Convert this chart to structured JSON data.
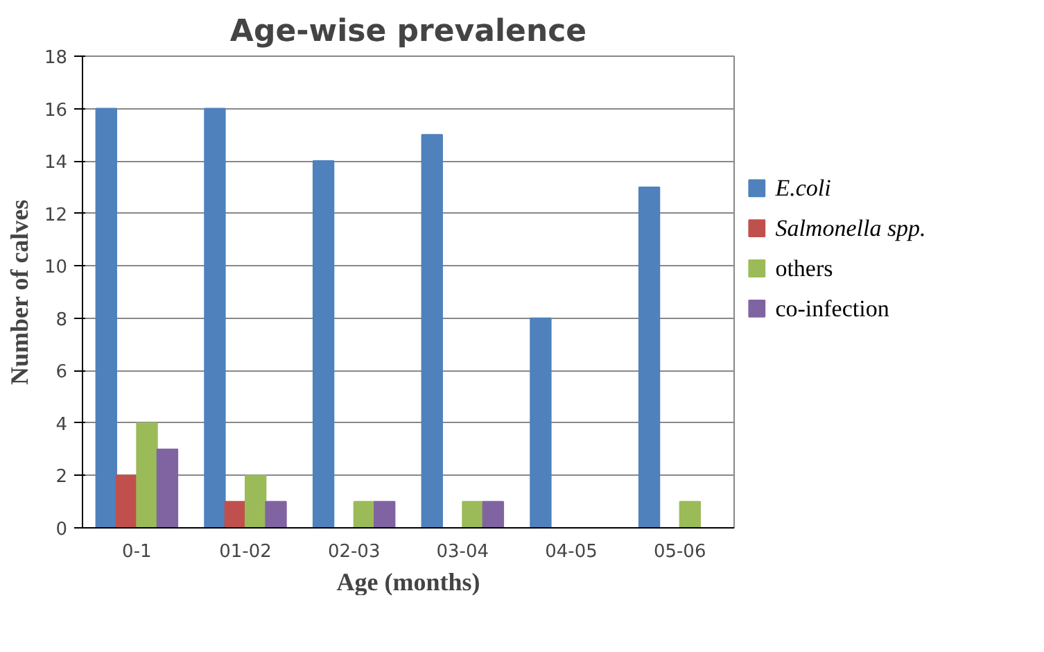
{
  "chart_data": {
    "type": "bar",
    "title": "Age-wise prevalence",
    "xlabel": "Age (months)",
    "ylabel": "Number of calves",
    "categories": [
      "0-1",
      "01-02",
      "02-03",
      "03-04",
      "04-05",
      "05-06"
    ],
    "series": [
      {
        "name": "E.coli",
        "color": "#4f81bd",
        "values": [
          16,
          16,
          14,
          15,
          8,
          13
        ]
      },
      {
        "name": "Salmonella spp.",
        "color": "#c0504d",
        "values": [
          2,
          1,
          0,
          0,
          0,
          0
        ]
      },
      {
        "name": "others",
        "color": "#9bbb59",
        "values": [
          4,
          2,
          1,
          1,
          0,
          1
        ]
      },
      {
        "name": "co-infection",
        "color": "#8064a2",
        "values": [
          3,
          1,
          1,
          1,
          0,
          0
        ]
      }
    ],
    "ylim": [
      0,
      18
    ],
    "yticks": [
      0,
      2,
      4,
      6,
      8,
      10,
      12,
      14,
      16,
      18
    ],
    "grid": "y",
    "legend": "right"
  }
}
